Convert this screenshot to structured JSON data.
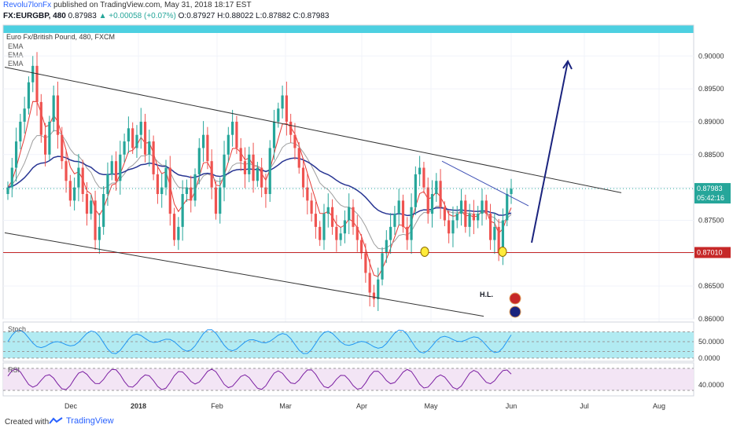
{
  "header": {
    "author": "Revolu7lonFx",
    "published": "published on TradingView.com, May 31, 2018 18:17 EST",
    "symbol": "FX:EURGBP, 480",
    "last": "0.87983",
    "change": "▲ +0.00058 (+0.07%)",
    "ohlc": "O:0.87927 H:0.88022 L:0.87882 C:0.87983"
  },
  "chart_title": "Euro Fx/British Pound, 480, FXCM",
  "indicator_labels": [
    "EMA",
    "EMA",
    "EMA"
  ],
  "footer": {
    "created_with": "Created with",
    "brand": "TradingView"
  },
  "annotation_hl": "H.L.",
  "chart_data": {
    "type": "candlestick",
    "price_axis": {
      "ylim": [
        0.86,
        0.9035
      ],
      "ticks": [
        0.9,
        0.895,
        0.89,
        0.885,
        0.88,
        0.875,
        0.87,
        0.865,
        0.86
      ],
      "tick_labels": [
        "0.90000",
        "0.89500",
        "0.89000",
        "0.88500",
        "0.88000",
        "0.87500",
        "0.87000",
        "0.86500",
        "0.86000"
      ]
    },
    "time_axis": {
      "labels": [
        "Dec",
        "2018",
        "Feb",
        "Mar",
        "Apr",
        "May",
        "Jun",
        "Jul",
        "Aug"
      ]
    },
    "last_price": {
      "value": 0.87983,
      "label": "0.87983",
      "countdown": "05:42:16",
      "color": "#26a69a"
    },
    "support_level": {
      "value": 0.8701,
      "label": "0.87010",
      "color": "#c62828"
    },
    "dotted_price_line": 0.87983,
    "series_close": [
      0.88,
      0.883,
      0.887,
      0.89,
      0.892,
      0.896,
      0.8985,
      0.893,
      0.888,
      0.885,
      0.89,
      0.894,
      0.888,
      0.884,
      0.881,
      0.878,
      0.88,
      0.883,
      0.879,
      0.876,
      0.878,
      0.872,
      0.874,
      0.879,
      0.882,
      0.884,
      0.881,
      0.885,
      0.887,
      0.889,
      0.886,
      0.888,
      0.89,
      0.885,
      0.887,
      0.882,
      0.879,
      0.88,
      0.883,
      0.876,
      0.872,
      0.874,
      0.879,
      0.88,
      0.878,
      0.882,
      0.886,
      0.888,
      0.884,
      0.88,
      0.876,
      0.88,
      0.885,
      0.888,
      0.89,
      0.886,
      0.884,
      0.882,
      0.885,
      0.881,
      0.883,
      0.88,
      0.879,
      0.886,
      0.89,
      0.892,
      0.894,
      0.89,
      0.888,
      0.886,
      0.883,
      0.88,
      0.878,
      0.876,
      0.874,
      0.872,
      0.876,
      0.877,
      0.874,
      0.872,
      0.873,
      0.875,
      0.877,
      0.874,
      0.872,
      0.87,
      0.867,
      0.864,
      0.863,
      0.866,
      0.87,
      0.872,
      0.874,
      0.876,
      0.878,
      0.874,
      0.872,
      0.877,
      0.882,
      0.883,
      0.88,
      0.876,
      0.879,
      0.881,
      0.877,
      0.875,
      0.873,
      0.875,
      0.876,
      0.878,
      0.874,
      0.876,
      0.875,
      0.876,
      0.878,
      0.876,
      0.872,
      0.874,
      0.87,
      0.875,
      0.879,
      0.8798
    ],
    "trendlines": [
      {
        "name": "upper-channel",
        "from": [
          "~Nov",
          0.8983
        ],
        "to": [
          "~Jul 20",
          0.8792
        ],
        "color": "#333333"
      },
      {
        "name": "lower-channel",
        "from": [
          "~Nov",
          0.8731
        ],
        "to": [
          "~Jun 28",
          0.8604
        ],
        "color": "#333333"
      },
      {
        "name": "short-resistance",
        "from": [
          "~May 3",
          0.884
        ],
        "to": [
          "~Jun 1",
          0.8772
        ],
        "color": "#3f51b5"
      },
      {
        "name": "projection-arrow",
        "from": [
          "~Jun 2",
          0.8716
        ],
        "to": [
          "~Jun 22",
          0.8992
        ],
        "color": "#1a237e"
      }
    ],
    "ema_colors": [
      "#e53935",
      "#9e9e9e",
      "#283593"
    ],
    "stoch": {
      "ylim": [
        -10,
        110
      ],
      "levels": [
        80,
        50,
        20,
        0
      ],
      "tick_labels": [
        "50.0000",
        "0.0000"
      ],
      "fill": "#b2ebf2",
      "line": "#2196f3"
    },
    "rsi": {
      "ylim": [
        20,
        80
      ],
      "levels": [
        70,
        30
      ],
      "tick_labels": [
        "40.0000"
      ],
      "fill": "#f3e5f5",
      "line": "#7b1fa2"
    }
  },
  "colors": {
    "bull": "#26a69a",
    "bear": "#ef5350",
    "top_band": "#4dd0e1"
  }
}
